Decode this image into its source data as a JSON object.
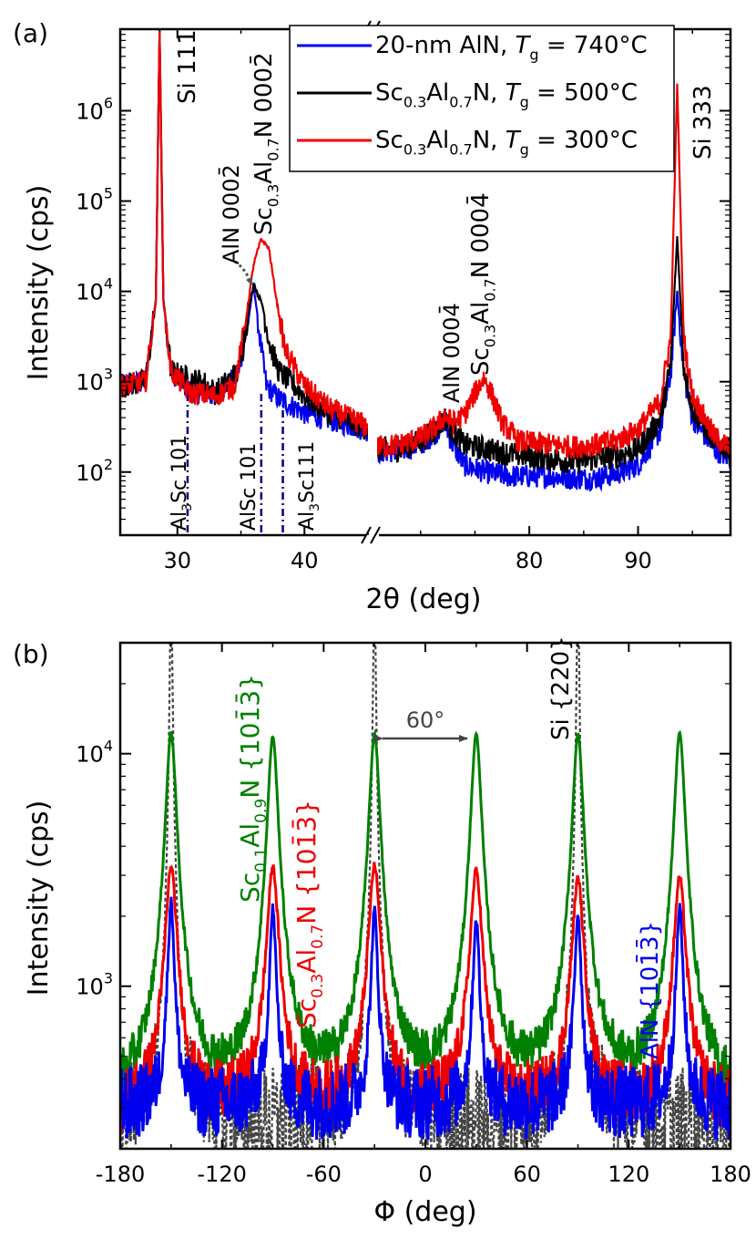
{
  "chart_data": [
    {
      "panel_label": "(a)",
      "type": "line",
      "xlabel": "2θ (deg)",
      "ylabel": "Intensity (cps)",
      "yscale": "log",
      "broken_x_axis": true,
      "segments": [
        {
          "xlim": [
            25.5,
            45
          ],
          "ticks": [
            "30",
            "40"
          ]
        },
        {
          "xlim": [
            66,
            98.5
          ],
          "ticks": [
            "80",
            "90"
          ]
        }
      ],
      "ylim": [
        20,
        8000000
      ],
      "y_ticks": [
        "10^2",
        "10^3",
        "10^4",
        "10^5",
        "10^6"
      ],
      "legend_position": "top-right",
      "series": [
        {
          "name": "20-nm AlN, Tg = 740°C",
          "legend_parts": [
            "20-nm AlN, ",
            "T",
            "g",
            " = 740°C"
          ],
          "color": "#0000ee",
          "points": [
            [
              25.5,
              900
            ],
            [
              27.5,
              1000
            ],
            [
              28.3,
              8000
            ],
            [
              28.6,
              8000000
            ],
            [
              28.9,
              8000
            ],
            [
              29.5,
              1300
            ],
            [
              31,
              800
            ],
            [
              33,
              700
            ],
            [
              34.8,
              1200
            ],
            [
              35.6,
              5000
            ],
            [
              36,
              12000
            ],
            [
              36.5,
              3000
            ],
            [
              37,
              900
            ],
            [
              38,
              650
            ],
            [
              40,
              450
            ],
            [
              42,
              380
            ],
            [
              45,
              290
            ],
            [
              66,
              170
            ],
            [
              68,
              170
            ],
            [
              70,
              200
            ],
            [
              71.5,
              280
            ],
            [
              72.2,
              380
            ],
            [
              72.8,
              220
            ],
            [
              74,
              120
            ],
            [
              76,
              100
            ],
            [
              78,
              90
            ],
            [
              80,
              90
            ],
            [
              82,
              90
            ],
            [
              84,
              85
            ],
            [
              86,
              85
            ],
            [
              88,
              95
            ],
            [
              90,
              120
            ],
            [
              92,
              280
            ],
            [
              93,
              1200
            ],
            [
              93.6,
              10000
            ],
            [
              94.2,
              1200
            ],
            [
              95,
              400
            ],
            [
              97,
              180
            ],
            [
              98.5,
              140
            ]
          ]
        },
        {
          "name": "Sc0.3Al0.7N, Tg = 500°C",
          "legend_parts": [
            "Sc",
            "0.3",
            "Al",
            "0.7",
            "N,   ",
            "T",
            "g",
            " = 500°C"
          ],
          "color": "#000000",
          "points": [
            [
              25.5,
              900
            ],
            [
              27.5,
              1000
            ],
            [
              28.3,
              8000
            ],
            [
              28.6,
              8000000
            ],
            [
              28.9,
              8000
            ],
            [
              29.5,
              1300
            ],
            [
              31,
              1050
            ],
            [
              32,
              1000
            ],
            [
              33,
              750
            ],
            [
              34.8,
              1300
            ],
            [
              35.6,
              6000
            ],
            [
              36,
              12000
            ],
            [
              36.7,
              7000
            ],
            [
              37.3,
              2500
            ],
            [
              38,
              1300
            ],
            [
              40,
              700
            ],
            [
              42,
              450
            ],
            [
              45,
              300
            ],
            [
              66,
              180
            ],
            [
              68,
              180
            ],
            [
              70,
              220
            ],
            [
              71.5,
              300
            ],
            [
              72.2,
              400
            ],
            [
              72.8,
              300
            ],
            [
              74,
              200
            ],
            [
              76,
              180
            ],
            [
              78,
              160
            ],
            [
              80,
              150
            ],
            [
              82,
              140
            ],
            [
              84,
              130
            ],
            [
              86,
              140
            ],
            [
              88,
              150
            ],
            [
              90,
              180
            ],
            [
              92,
              380
            ],
            [
              93,
              1500
            ],
            [
              93.6,
              40000
            ],
            [
              94.2,
              1500
            ],
            [
              95,
              500
            ],
            [
              97,
              230
            ],
            [
              98.5,
              170
            ]
          ]
        },
        {
          "name": "Sc0.3Al0.7N, Tg = 300°C",
          "legend_parts": [
            "Sc",
            "0.3",
            "Al",
            "0.7",
            "N,   ",
            "T",
            "g",
            " = 300°C"
          ],
          "color": "#ee0000",
          "points": [
            [
              25.5,
              900
            ],
            [
              27.5,
              1000
            ],
            [
              28.3,
              8000
            ],
            [
              28.6,
              8000000
            ],
            [
              28.9,
              8000
            ],
            [
              29.5,
              1300
            ],
            [
              31,
              750
            ],
            [
              33,
              700
            ],
            [
              34.5,
              900
            ],
            [
              35.3,
              4000
            ],
            [
              36,
              20000
            ],
            [
              36.6,
              38000
            ],
            [
              37.2,
              30000
            ],
            [
              37.8,
              8000
            ],
            [
              38.5,
              2200
            ],
            [
              40,
              900
            ],
            [
              42,
              500
            ],
            [
              45,
              320
            ],
            [
              66,
              190
            ],
            [
              68,
              200
            ],
            [
              70,
              240
            ],
            [
              71.5,
              320
            ],
            [
              72.2,
              420
            ],
            [
              73,
              350
            ],
            [
              74,
              420
            ],
            [
              75,
              750
            ],
            [
              75.8,
              1100
            ],
            [
              76.5,
              750
            ],
            [
              77.5,
              350
            ],
            [
              79,
              220
            ],
            [
              82,
              200
            ],
            [
              84,
              190
            ],
            [
              86,
              200
            ],
            [
              88,
              220
            ],
            [
              90,
              300
            ],
            [
              92,
              600
            ],
            [
              93,
              3000
            ],
            [
              93.6,
              2000000
            ],
            [
              94.2,
              3000
            ],
            [
              95,
              700
            ],
            [
              97,
              250
            ],
            [
              98.5,
              180
            ]
          ]
        }
      ],
      "annotations": [
        {
          "text": "Si 111",
          "x": 28.6,
          "rotated": true,
          "color": "#000000"
        },
        {
          "text": "AlN 0002̄",
          "x": 35.9,
          "rotated": true,
          "color": "#000000"
        },
        {
          "text": "Sc0.3Al0.7N 0002̄",
          "parts": [
            "Sc",
            "0.3",
            "Al",
            "0.7",
            "N 0002̄"
          ],
          "x": 36.7,
          "rotated": true,
          "color": "#000000"
        },
        {
          "text": "AlN 0004̄",
          "x": 72.2,
          "rotated": true,
          "color": "#000000"
        },
        {
          "text": "Sc0.3Al0.7N 0004̄",
          "parts": [
            "Sc",
            "0.3",
            "Al",
            "0.7",
            "N 0004̄"
          ],
          "x": 75.8,
          "rotated": true,
          "color": "#000000"
        },
        {
          "text": "Si 333",
          "x": 93.6,
          "rotated": true,
          "color": "#000000"
        },
        {
          "text": "Al3Sc 101",
          "parts": [
            "Al",
            "3",
            "Sc 101"
          ],
          "x": 30.8,
          "rotated": true,
          "color": "#000000"
        },
        {
          "text": "AlSc 101",
          "x": 36.6,
          "rotated": true,
          "color": "#000000"
        },
        {
          "text": "Al3Sc111",
          "parts": [
            "Al",
            "3",
            "Sc111"
          ],
          "x": 38.3,
          "rotated": true,
          "color": "#000000"
        }
      ],
      "reference_lines": [
        {
          "name": "Al3Sc 101",
          "x": 30.8,
          "style": "dash-dot",
          "color": "#000080"
        },
        {
          "name": "AlSc 101",
          "x": 36.6,
          "style": "dash-dot",
          "color": "#000080"
        },
        {
          "name": "Al3Sc111",
          "x": 38.3,
          "style": "dash-dot",
          "color": "#000080"
        }
      ]
    },
    {
      "panel_label": "(b)",
      "type": "line",
      "xlabel": "Φ (deg)",
      "ylabel": "Intensity (cps)",
      "yscale": "log",
      "xlim": [
        -180,
        180
      ],
      "x_ticks": [
        "-180",
        "-120",
        "-60",
        "0",
        "60",
        "120",
        "180"
      ],
      "ylim": [
        200,
        30000
      ],
      "y_ticks": [
        "10^3",
        "10^4"
      ],
      "peak_positions": [
        -150,
        -90,
        -30,
        30,
        90,
        150
      ],
      "series": [
        {
          "name": "Sc0.1Al0.9N {101̄3̄}",
          "color": "#008000",
          "baseline": 290,
          "peak_heights": [
            12000,
            11500,
            11800,
            11800,
            11800,
            12000
          ],
          "width": 2.8,
          "style": "solid"
        },
        {
          "name": "Sc0.3Al0.7N {101̄3̄}",
          "color": "#ee0000",
          "baseline": 280,
          "peak_heights": [
            2950,
            2950,
            3000,
            2850,
            2600,
            2650
          ],
          "width": 3.2,
          "style": "solid"
        },
        {
          "name": "AlN {101̄3̄}",
          "color": "#0000ee",
          "baseline": 300,
          "peak_heights": [
            2000,
            1850,
            1800,
            1650,
            1750,
            1900
          ],
          "width": 1.8,
          "style": "solid"
        },
        {
          "name": "Si {220}",
          "color": "#444444",
          "baseline": 250,
          "peak_heights": [
            50000,
            0,
            50000,
            0,
            50000,
            0
          ],
          "width": 0.7,
          "style": "dashed"
        }
      ],
      "annotations": [
        {
          "text": "Sc0.1Al0.9N {101̄3̄}",
          "parts": [
            "Sc",
            "0.1",
            "Al",
            "0.9",
            "N {101̄3̄}"
          ],
          "color": "#008000",
          "rotated": true
        },
        {
          "text": "Sc0.3Al0.7N {101̄3̄}",
          "parts": [
            "Sc",
            "0.3",
            "Al",
            "0.7",
            "N {101̄3̄}"
          ],
          "color": "#ee0000",
          "rotated": true
        },
        {
          "text": "Si {220}",
          "color": "#000000",
          "rotated": true
        },
        {
          "text": "AlN {101̄3̄}",
          "color": "#0000ee",
          "rotated": true
        },
        {
          "text": "60°",
          "color": "#444444",
          "rotated": false,
          "arrow_from": -30,
          "arrow_to": 30
        }
      ]
    }
  ]
}
